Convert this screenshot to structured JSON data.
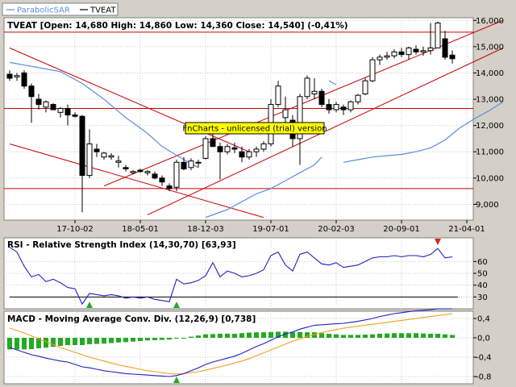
{
  "legend": [
    {
      "name": "ParabolicSAR",
      "color": "#5a8de0"
    },
    {
      "name": "TVEAT",
      "color": "#000000"
    }
  ],
  "watermark": "FnCharts - unlicensed (trial) version",
  "chart_data": [
    {
      "type": "candlestick",
      "title": "TVEAT [Open: 14,680  High: 14,860  Low: 14,360  Close: 14,540] (-0,41%)",
      "ylim": [
        8400,
        16100
      ],
      "yticks": [
        {
          "v": 9000,
          "label": "9,000"
        },
        {
          "v": 10000,
          "label": "10,000"
        },
        {
          "v": 11000,
          "label": "11,000"
        },
        {
          "v": 12000,
          "label": "12,000"
        },
        {
          "v": 13000,
          "label": "13,000"
        },
        {
          "v": 14000,
          "label": "14,000"
        },
        {
          "v": 15000,
          "label": "15,000"
        },
        {
          "v": 16000,
          "label": "16,000"
        }
      ],
      "xticks": [
        {
          "i": 9,
          "label": "17-10-02"
        },
        {
          "i": 18,
          "label": "18-05-01"
        },
        {
          "i": 27,
          "label": "18-12-03"
        },
        {
          "i": 36,
          "label": "19-07-01"
        },
        {
          "i": 45,
          "label": "20-02-03"
        },
        {
          "i": 54,
          "label": "20-09-01"
        },
        {
          "i": 63,
          "label": "21-04-01"
        }
      ],
      "candles": [
        [
          13950,
          14100,
          13700,
          13800
        ],
        [
          13850,
          14000,
          13700,
          13900
        ],
        [
          14000,
          14100,
          13400,
          13500
        ],
        [
          13500,
          13600,
          12100,
          13100
        ],
        [
          13000,
          13200,
          12600,
          12800
        ],
        [
          12700,
          12950,
          12500,
          12900
        ],
        [
          12800,
          12850,
          12600,
          12600
        ],
        [
          12500,
          12700,
          12300,
          12650
        ],
        [
          12650,
          12800,
          12000,
          12400
        ],
        [
          12400,
          12500,
          12300,
          12350
        ],
        [
          12350,
          12400,
          8700,
          10100
        ],
        [
          10100,
          11850,
          10000,
          11300
        ],
        [
          11100,
          11300,
          10800,
          11000
        ],
        [
          10800,
          11000,
          10700,
          10950
        ],
        [
          10800,
          10950,
          10700,
          10850
        ],
        [
          10600,
          10850,
          10400,
          10650
        ],
        [
          10400,
          10500,
          10250,
          10350
        ],
        [
          10200,
          10300,
          10150,
          10250
        ],
        [
          10300,
          10350,
          10200,
          10250
        ],
        [
          10200,
          10300,
          10100,
          10250
        ],
        [
          10150,
          10250,
          9950,
          10000
        ],
        [
          10000,
          10100,
          9700,
          9850
        ],
        [
          9700,
          9800,
          9500,
          9600
        ],
        [
          9650,
          10700,
          9500,
          10600
        ],
        [
          10600,
          10800,
          10300,
          10350
        ],
        [
          10400,
          10750,
          10300,
          10650
        ],
        [
          10600,
          10700,
          10400,
          10600
        ],
        [
          10750,
          11600,
          10700,
          11500
        ],
        [
          11500,
          11800,
          11200,
          11200
        ],
        [
          11200,
          11350,
          9950,
          11000
        ],
        [
          11000,
          11300,
          10900,
          11200
        ],
        [
          11150,
          11350,
          10950,
          11100
        ],
        [
          11000,
          11200,
          10600,
          10800
        ],
        [
          10800,
          11100,
          10700,
          11000
        ],
        [
          11000,
          11200,
          10800,
          11100
        ],
        [
          11100,
          11400,
          11000,
          11300
        ],
        [
          11300,
          13000,
          11200,
          12800
        ],
        [
          12800,
          13700,
          12700,
          13500
        ],
        [
          12300,
          13100,
          12000,
          12600
        ],
        [
          12200,
          12400,
          11200,
          11500
        ],
        [
          11500,
          13200,
          10500,
          13100
        ],
        [
          13100,
          13900,
          13000,
          13800
        ],
        [
          13200,
          13800,
          13000,
          13300
        ],
        [
          13300,
          13400,
          12700,
          12800
        ],
        [
          12800,
          13000,
          12450,
          12600
        ],
        [
          12600,
          12900,
          12500,
          12800
        ],
        [
          12700,
          12800,
          12400,
          12600
        ],
        [
          12600,
          12950,
          12500,
          12900
        ],
        [
          12900,
          13200,
          12800,
          13150
        ],
        [
          13200,
          13800,
          13150,
          13700
        ],
        [
          13700,
          14600,
          13650,
          14500
        ],
        [
          14500,
          14700,
          14300,
          14600
        ],
        [
          14600,
          14800,
          14500,
          14650
        ],
        [
          14650,
          14900,
          14550,
          14800
        ],
        [
          14800,
          14950,
          14600,
          14700
        ],
        [
          14700,
          15000,
          14500,
          14950
        ],
        [
          14900,
          15050,
          14700,
          14800
        ],
        [
          14800,
          15000,
          14650,
          14850
        ],
        [
          14850,
          15900,
          14700,
          14950
        ],
        [
          14950,
          15950,
          14950,
          15900
        ],
        [
          15300,
          15600,
          14500,
          14600
        ],
        [
          14680,
          14860,
          14360,
          14540
        ]
      ],
      "horizontal_lines": [
        9600,
        12650,
        15550
      ],
      "trend_lines": [
        {
          "from": [
            0,
            14950
          ],
          "to": [
            33,
            11000
          ]
        },
        {
          "from": [
            0,
            11300
          ],
          "to": [
            35,
            8500
          ]
        },
        {
          "from": [
            13,
            9700
          ],
          "to": [
            68,
            16000
          ]
        },
        {
          "from": [
            19,
            8600
          ],
          "to": [
            68,
            14950
          ]
        }
      ],
      "sar_segments": [
        [
          [
            0,
            14400
          ],
          [
            2,
            14300
          ],
          [
            4,
            14200
          ],
          [
            7,
            14050
          ],
          [
            10,
            13600
          ],
          [
            13,
            13000
          ],
          [
            16,
            12300
          ],
          [
            19,
            11700
          ],
          [
            21,
            11200
          ],
          [
            24,
            10700
          ],
          [
            26,
            10400
          ]
        ],
        [
          [
            27,
            8500
          ],
          [
            28,
            8600
          ],
          [
            30,
            8800
          ],
          [
            32,
            9100
          ],
          [
            34,
            9400
          ],
          [
            36,
            9600
          ],
          [
            38,
            9900
          ],
          [
            40,
            10200
          ],
          [
            42,
            10500
          ],
          [
            43,
            10800
          ]
        ],
        [
          [
            44,
            13700
          ],
          [
            45,
            13550
          ]
        ],
        [
          [
            46,
            10600
          ],
          [
            48,
            10700
          ],
          [
            50,
            10800
          ],
          [
            52,
            10850
          ],
          [
            54,
            10900
          ],
          [
            56,
            11000
          ],
          [
            58,
            11150
          ],
          [
            60,
            11450
          ],
          [
            62,
            11900
          ],
          [
            64,
            12250
          ],
          [
            66,
            12550
          ],
          [
            68,
            12900
          ]
        ]
      ]
    },
    {
      "type": "line",
      "title": "RSI - Relative Strength Index (14,30,70) [63,93]",
      "ylim": [
        20,
        80
      ],
      "yticks": [
        {
          "v": 30,
          "label": "30"
        },
        {
          "v": 40,
          "label": "40"
        },
        {
          "v": 50,
          "label": "50"
        },
        {
          "v": 60,
          "label": "60"
        }
      ],
      "level": 30,
      "values": [
        72,
        68,
        56,
        47,
        49,
        43,
        45,
        42,
        38,
        37,
        24,
        33,
        32,
        31,
        32,
        31,
        29,
        30,
        29,
        30,
        28,
        27,
        26,
        45,
        41,
        42,
        44,
        48,
        59,
        47,
        52,
        50,
        47,
        48,
        50,
        53,
        65,
        68,
        57,
        52,
        66,
        68,
        63,
        58,
        57,
        59,
        55,
        56,
        57,
        60,
        63,
        64,
        64,
        65,
        64,
        65,
        65,
        64,
        66,
        71,
        63,
        64
      ],
      "buy_markers": [
        11,
        23
      ],
      "sell_markers": [
        59
      ]
    },
    {
      "type": "line",
      "title": "MACD - Moving Average Conv. Div. (12,26,9) [0,738]",
      "ylim": [
        -0.95,
        0.55
      ],
      "yticks": [
        {
          "v": 0.4,
          "label": "0,4"
        },
        {
          "v": 0,
          "label": "0,0"
        },
        {
          "v": -0.4,
          "label": "-0,4"
        },
        {
          "v": -0.8,
          "label": "-0,8"
        }
      ],
      "macd": [
        -0.2,
        -0.25,
        -0.3,
        -0.35,
        -0.38,
        -0.42,
        -0.45,
        -0.48,
        -0.5,
        -0.55,
        -0.6,
        -0.62,
        -0.65,
        -0.68,
        -0.7,
        -0.72,
        -0.74,
        -0.75,
        -0.76,
        -0.77,
        -0.78,
        -0.79,
        -0.8,
        -0.78,
        -0.74,
        -0.68,
        -0.62,
        -0.55,
        -0.5,
        -0.46,
        -0.42,
        -0.38,
        -0.32,
        -0.25,
        -0.18,
        -0.12,
        -0.05,
        0.02,
        0.08,
        0.12,
        0.18,
        0.22,
        0.26,
        0.27,
        0.28,
        0.29,
        0.3,
        0.32,
        0.34,
        0.37,
        0.4,
        0.44,
        0.47,
        0.5,
        0.52,
        0.54,
        0.56,
        0.57,
        0.58,
        0.6,
        0.6,
        0.6
      ],
      "signal": [
        0.2,
        0.15,
        0.1,
        0.04,
        -0.02,
        -0.08,
        -0.14,
        -0.2,
        -0.25,
        -0.3,
        -0.35,
        -0.4,
        -0.44,
        -0.48,
        -0.52,
        -0.56,
        -0.59,
        -0.62,
        -0.65,
        -0.68,
        -0.7,
        -0.72,
        -0.74,
        -0.75,
        -0.74,
        -0.72,
        -0.7,
        -0.67,
        -0.63,
        -0.6,
        -0.56,
        -0.52,
        -0.48,
        -0.43,
        -0.37,
        -0.31,
        -0.25,
        -0.19,
        -0.13,
        -0.07,
        -0.02,
        0.03,
        0.07,
        0.11,
        0.14,
        0.17,
        0.2,
        0.22,
        0.24,
        0.26,
        0.28,
        0.3,
        0.32,
        0.34,
        0.36,
        0.38,
        0.4,
        0.42,
        0.44,
        0.46,
        0.48,
        0.5
      ],
      "buy_markers": [
        23
      ]
    }
  ]
}
